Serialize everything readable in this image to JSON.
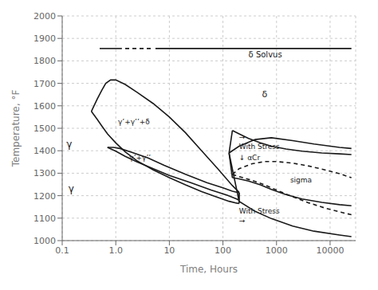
{
  "chart_data": {
    "type": "line",
    "log": "x",
    "xlabel": "Time, Hours",
    "ylabel": "Temperature, °F",
    "xlim": [
      0.1,
      30000
    ],
    "ylim": [
      1000,
      2000
    ],
    "xticks": [
      0.1,
      {
        "value": 1.0,
        "label": "1.0"
      },
      10,
      100,
      1000,
      10000
    ],
    "yticks": [
      1000,
      1100,
      1200,
      1300,
      1400,
      1500,
      1600,
      1700,
      1800,
      1900,
      2000
    ],
    "grid": true,
    "series": [
      {
        "x": [
          0.5,
          1.3
        ],
        "values": [
          1855,
          1855
        ],
        "color": "#1a1a1a",
        "line_style": "solid"
      },
      {
        "x": [
          1.5,
          4.5
        ],
        "values": [
          1855,
          1855
        ],
        "color": "#1a1a1a",
        "line_style": "dashed"
      },
      {
        "x": [
          5.5,
          25000
        ],
        "values": [
          1855,
          1855
        ],
        "color": "#1a1a1a",
        "line_style": "solid"
      },
      {
        "x": [
          0.35,
          0.45,
          0.55,
          0.65,
          0.8,
          1.0,
          1.5,
          2.5,
          5.0,
          10.0,
          20.0,
          40.0,
          80.0,
          150.0,
          200.0
        ],
        "values": [
          1575,
          1630,
          1670,
          1700,
          1715,
          1715,
          1695,
          1660,
          1610,
          1550,
          1480,
          1400,
          1320,
          1245,
          1215
        ],
        "color": "#1a1a1a",
        "line_style": "solid"
      },
      {
        "x": [
          0.35,
          0.45,
          0.55,
          0.7,
          1.0,
          1.5,
          2.5,
          5.0,
          10.0,
          20.0,
          40.0,
          80.0,
          130.0,
          180.0,
          200.0
        ],
        "values": [
          1575,
          1540,
          1510,
          1475,
          1435,
          1395,
          1355,
          1315,
          1280,
          1248,
          1218,
          1192,
          1175,
          1167,
          1165
        ],
        "color": "#1a1a1a",
        "line_style": "solid"
      },
      {
        "x": [
          0.35,
          0.35
        ],
        "values": [
          1575,
          1575
        ],
        "color": "#1a1a1a",
        "line_style": "solid"
      },
      {
        "x": [
          200.0,
          200.0
        ],
        "values": [
          1215,
          1165
        ],
        "color": "#1a1a1a",
        "line_style": "solid"
      },
      {
        "x": [
          0.7,
          0.9,
          1.2,
          2.0,
          4.0,
          8.0,
          20.0,
          50.0,
          100.0,
          150.0,
          200.0
        ],
        "values": [
          1415,
          1415,
          1410,
          1393,
          1368,
          1335,
          1295,
          1258,
          1235,
          1220,
          1213
        ],
        "color": "#1a1a1a",
        "line_style": "solid"
      },
      {
        "x": [
          0.7,
          1.0,
          1.5,
          2.5,
          5.0,
          10.0,
          25.0,
          60.0,
          120.0,
          180.0,
          200.0
        ],
        "values": [
          1415,
          1398,
          1375,
          1350,
          1320,
          1290,
          1258,
          1225,
          1202,
          1185,
          1180
        ],
        "color": "#1a1a1a",
        "line_style": "solid"
      },
      {
        "x": [
          0.7,
          0.7
        ],
        "values": [
          1415,
          1415
        ],
        "color": "#1a1a1a",
        "line_style": "solid"
      },
      {
        "x": [
          200.0,
          200.0
        ],
        "values": [
          1213,
          1180
        ],
        "color": "#1a1a1a",
        "line_style": "solid"
      },
      {
        "x": [
          150,
          200,
          300,
          500,
          800,
          1500,
          3000,
          7000,
          15000,
          25000
        ],
        "values": [
          1490,
          1475,
          1455,
          1435,
          1420,
          1408,
          1398,
          1390,
          1386,
          1383
        ],
        "color": "#1a1a1a",
        "line_style": "solid"
      },
      {
        "x": [
          150,
          200,
          300,
          500,
          800,
          1500,
          3000,
          7000,
          15000,
          25000
        ],
        "values": [
          1280,
          1275,
          1265,
          1248,
          1228,
          1205,
          1185,
          1170,
          1160,
          1155
        ],
        "color": "#1a1a1a",
        "line_style": "solid"
      },
      {
        "x": [
          130,
          150
        ],
        "values": [
          1390,
          1490
        ],
        "color": "#1a1a1a",
        "line_style": "solid"
      },
      {
        "x": [
          130,
          150
        ],
        "values": [
          1390,
          1280
        ],
        "color": "#1a1a1a",
        "line_style": "solid"
      },
      {
        "x": [
          150,
          200,
          350,
          600,
          1000,
          2000,
          4000,
          8000,
          15000,
          25000
        ],
        "values": [
          1295,
          1320,
          1342,
          1352,
          1352,
          1345,
          1332,
          1315,
          1298,
          1280
        ],
        "color": "#1a1a1a",
        "line_style": "dashed"
      },
      {
        "x": [
          150,
          200,
          350,
          600,
          1000,
          2000,
          4000,
          8000,
          15000,
          25000
        ],
        "values": [
          1295,
          1285,
          1268,
          1248,
          1225,
          1195,
          1168,
          1145,
          1128,
          1115
        ],
        "color": "#1a1a1a",
        "line_style": "dashed"
      },
      {
        "x": [
          150,
          150
        ],
        "values": [
          1295,
          1295
        ],
        "color": "#1a1a1a",
        "line_style": "dashed"
      },
      {
        "x": [
          130,
          200,
          400,
          800,
          2000,
          5000,
          15000,
          25000
        ],
        "values": [
          1390,
          1420,
          1450,
          1458,
          1445,
          1430,
          1415,
          1410
        ],
        "color": "#1a1a1a",
        "line_style": "solid"
      },
      {
        "x": [
          130,
          200,
          400,
          800,
          2000,
          5000,
          15000,
          25000
        ],
        "values": [
          1390,
          1175,
          1130,
          1098,
          1065,
          1042,
          1025,
          1018
        ],
        "color": "#1a1a1a",
        "line_style": "solid"
      }
    ],
    "annotations": [
      {
        "text": "δ Solvus",
        "x": 300,
        "y": 1840
      },
      {
        "text": "δ",
        "x": 600,
        "y": 1650
      },
      {
        "text": "γ’+γ’’+δ",
        "x": 1.1,
        "y": 1530
      },
      {
        "text": "γ’+γ’’",
        "x": 1.8,
        "y": 1370
      },
      {
        "text": "γ",
        "x": 0.12,
        "y": 1430
      },
      {
        "text": "γ",
        "x": 0.13,
        "y": 1230
      },
      {
        "text": "↓ αCr",
        "x": 200,
        "y": 1368
      },
      {
        "text": "sigma",
        "x": 1800,
        "y": 1268
      },
      {
        "text": "→",
        "x": 200,
        "y": 1445
      },
      {
        "text": "With Stress",
        "x": 200,
        "y": 1430
      },
      {
        "text": "With Stress",
        "x": 200,
        "y": 1120
      },
      {
        "text": "→",
        "x": 200,
        "y": 1105
      }
    ]
  }
}
